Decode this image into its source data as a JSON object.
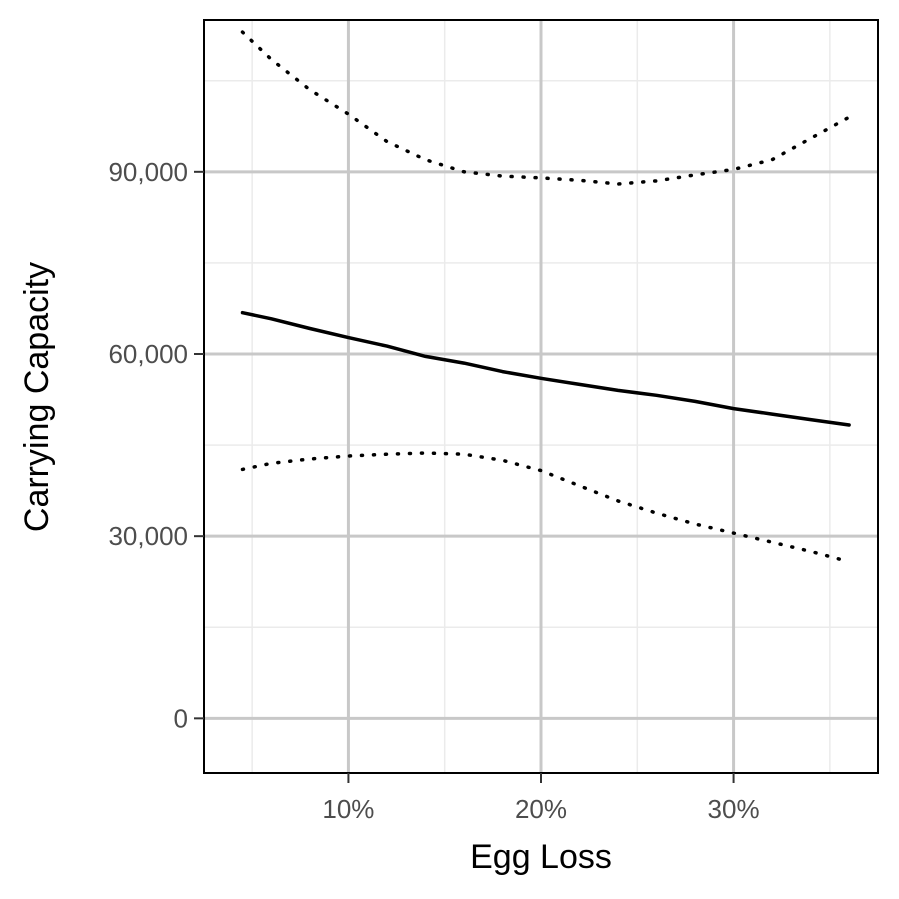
{
  "chart_data": {
    "type": "line",
    "title": "",
    "xlabel": "Egg Loss",
    "ylabel": "Carrying Capacity",
    "xlim": [
      0.025,
      0.375
    ],
    "ylim": [
      -9000,
      115000
    ],
    "x_ticks": [
      0.1,
      0.2,
      0.3
    ],
    "x_tick_labels": [
      "10%",
      "20%",
      "30%"
    ],
    "x_minor_ticks": [
      0.05,
      0.15,
      0.25,
      0.35
    ],
    "y_ticks": [
      0,
      30000,
      60000,
      90000
    ],
    "y_tick_labels": [
      "0",
      "30,000",
      "60,000",
      "90,000"
    ],
    "y_minor_ticks": [
      15000,
      45000,
      75000,
      105000
    ],
    "grid": true,
    "legend": "none",
    "series": [
      {
        "style": "solid",
        "x": [
          0.045,
          0.06,
          0.08,
          0.1,
          0.12,
          0.14,
          0.16,
          0.18,
          0.2,
          0.22,
          0.24,
          0.26,
          0.28,
          0.3,
          0.32,
          0.34,
          0.36
        ],
        "y": [
          66800,
          65800,
          64200,
          62700,
          61300,
          59600,
          58500,
          57100,
          56000,
          55000,
          54000,
          53200,
          52200,
          51000,
          50100,
          49200,
          48300
        ]
      },
      {
        "style": "dotted",
        "x": [
          0.045,
          0.06,
          0.08,
          0.1,
          0.12,
          0.14,
          0.16,
          0.18,
          0.2,
          0.22,
          0.24,
          0.26,
          0.28,
          0.3,
          0.32,
          0.34,
          0.36
        ],
        "y": [
          113000,
          108500,
          103500,
          99500,
          95000,
          92000,
          90000,
          89300,
          89000,
          88600,
          88000,
          88500,
          89500,
          90400,
          92000,
          95500,
          99000
        ]
      },
      {
        "style": "dotted",
        "x": [
          0.045,
          0.06,
          0.08,
          0.1,
          0.12,
          0.14,
          0.16,
          0.18,
          0.2,
          0.22,
          0.24,
          0.26,
          0.28,
          0.3,
          0.32,
          0.34,
          0.36
        ],
        "y": [
          41000,
          42000,
          42700,
          43200,
          43500,
          43700,
          43500,
          42500,
          40800,
          38300,
          35800,
          33800,
          32000,
          30500,
          29000,
          27500,
          25800
        ]
      }
    ]
  }
}
